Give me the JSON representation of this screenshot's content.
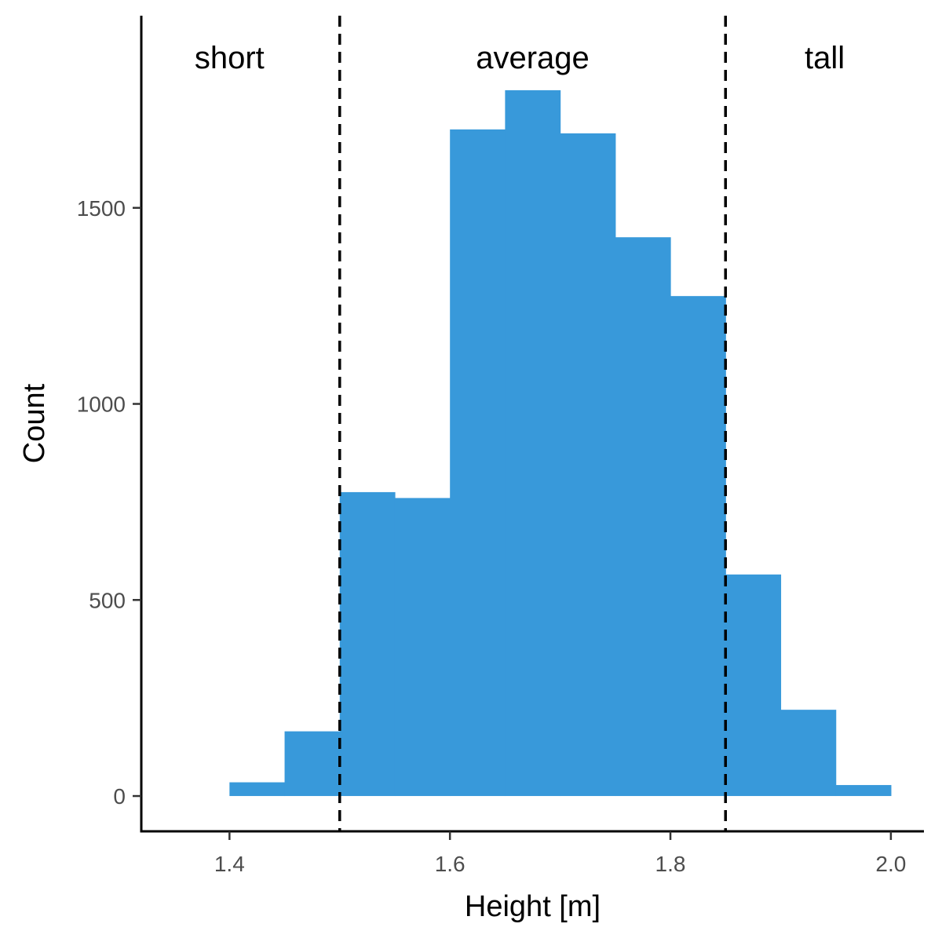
{
  "chart_data": {
    "type": "bar",
    "subtype": "histogram",
    "title": "",
    "xlabel": "Height [m]",
    "ylabel": "Count",
    "xlim": [
      1.32,
      2.03
    ],
    "ylim": [
      -90,
      1990
    ],
    "x_ticks": [
      1.4,
      1.6,
      1.8,
      2.0
    ],
    "x_tick_labels": [
      "1.4",
      "1.6",
      "1.8",
      "2.0"
    ],
    "y_ticks": [
      0,
      500,
      1000,
      1500
    ],
    "y_tick_labels": [
      "0",
      "500",
      "1000",
      "1500"
    ],
    "bin_width": 0.05,
    "bins": [
      {
        "x0": 1.4,
        "x1": 1.45,
        "count": 35
      },
      {
        "x0": 1.45,
        "x1": 1.5,
        "count": 165
      },
      {
        "x0": 1.5,
        "x1": 1.55,
        "count": 775
      },
      {
        "x0": 1.55,
        "x1": 1.6,
        "count": 760
      },
      {
        "x0": 1.6,
        "x1": 1.65,
        "count": 1700
      },
      {
        "x0": 1.65,
        "x1": 1.7,
        "count": 1800
      },
      {
        "x0": 1.7,
        "x1": 1.75,
        "count": 1690
      },
      {
        "x0": 1.75,
        "x1": 1.8,
        "count": 1425
      },
      {
        "x0": 1.8,
        "x1": 1.85,
        "count": 1275
      },
      {
        "x0": 1.85,
        "x1": 1.9,
        "count": 565
      },
      {
        "x0": 1.9,
        "x1": 1.95,
        "count": 220
      },
      {
        "x0": 1.95,
        "x1": 2.0,
        "count": 28
      }
    ],
    "reference_lines": [
      1.5,
      1.85
    ],
    "regions": [
      {
        "label": "short",
        "x": 1.4
      },
      {
        "label": "average",
        "x": 1.675
      },
      {
        "label": "tall",
        "x": 1.94
      }
    ],
    "bar_color": "#3899DA",
    "grid": false,
    "legend": "none"
  }
}
